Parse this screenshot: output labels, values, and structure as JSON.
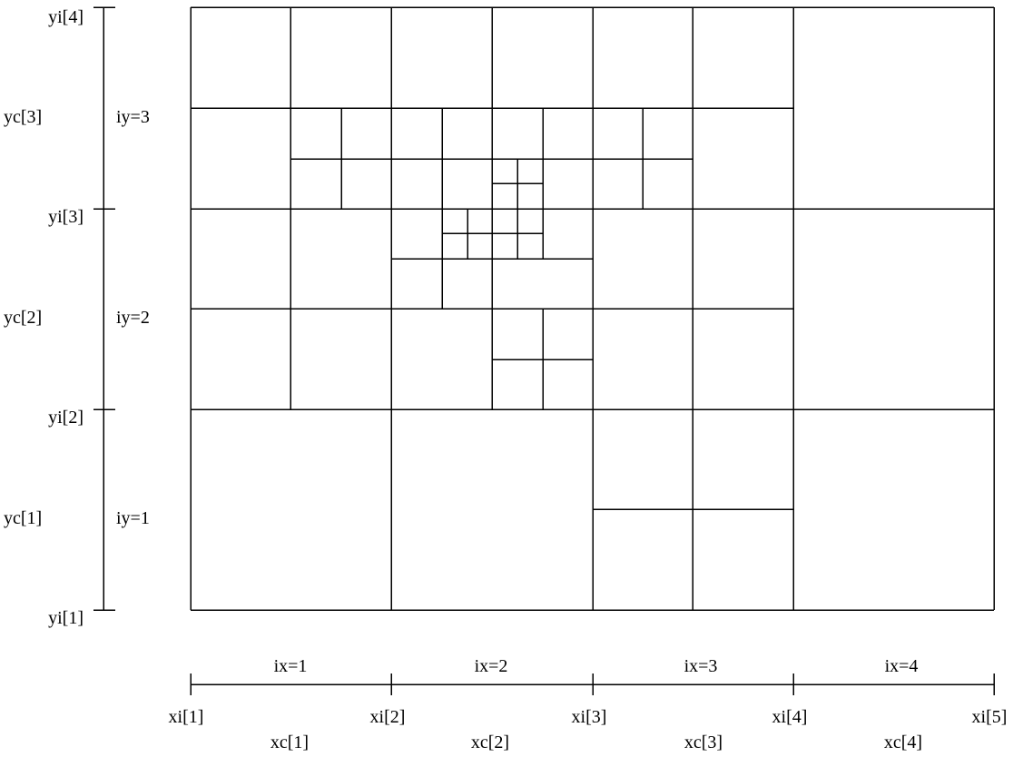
{
  "figure": {
    "line_color": "#000000",
    "background": "#ffffff"
  },
  "y_axis": {
    "interface_labels": [
      "yi[1]",
      "yi[2]",
      "yi[3]",
      "yi[4]"
    ],
    "center_labels": [
      "yc[1]",
      "yc[2]",
      "yc[3]"
    ],
    "index_labels": [
      "iy=1",
      "iy=2",
      "iy=3"
    ]
  },
  "x_axis": {
    "interface_labels": [
      "xi[1]",
      "xi[2]",
      "xi[3]",
      "xi[4]",
      "xi[5]"
    ],
    "center_labels": [
      "xc[1]",
      "xc[2]",
      "xc[3]",
      "xc[4]"
    ],
    "index_labels": [
      "ix=1",
      "ix=2",
      "ix=3",
      "ix=4"
    ]
  },
  "grid": {
    "base_columns": 4,
    "base_rows": 3,
    "refinement": "adaptive mesh refinement (level 0 base grid with refined sub-cells up to level 3)"
  }
}
